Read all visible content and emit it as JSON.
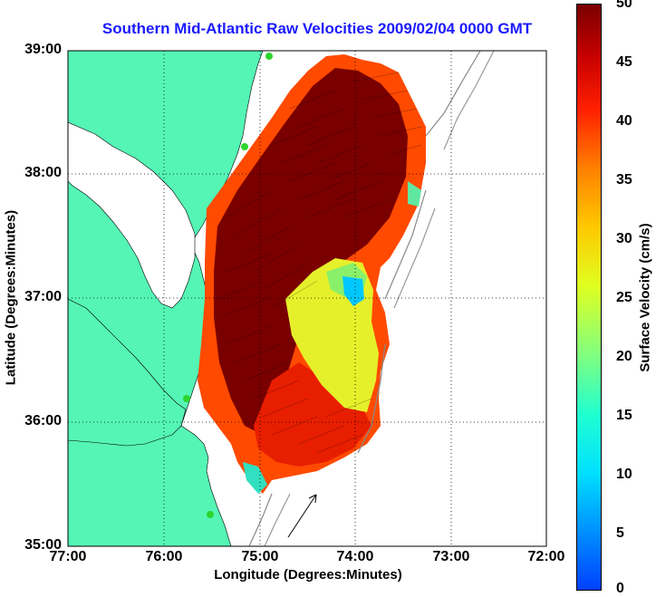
{
  "title": "Southern Mid-Atlantic Raw Velocities 2009/02/04 0000 GMT",
  "xlabel": "Longitude (Degrees:Minutes)",
  "ylabel": "Latitude (Degrees:Minutes)",
  "colorbar_label": "Surface Velocity (cm/s)",
  "x_ticks": [
    "77:00",
    "76:00",
    "75:00",
    "74:00",
    "73:00",
    "72:00"
  ],
  "y_ticks": [
    "39:00",
    "38:00",
    "37:00",
    "36:00",
    "35:00"
  ],
  "colorbar_ticks": [
    "50",
    "45",
    "40",
    "35",
    "30",
    "25",
    "20",
    "15",
    "10",
    "5",
    "0"
  ],
  "colors": {
    "land": "#55f5b5",
    "title": "#1a1aff",
    "high_velocity": "#7a0000",
    "low_velocity": "#00c8ff"
  },
  "chart_data": {
    "type": "heatmap",
    "xlim": [
      -77,
      -72
    ],
    "ylim": [
      35,
      39
    ],
    "clim": [
      0,
      50
    ],
    "grid": true,
    "colormap": "jet",
    "units": "cm/s"
  }
}
